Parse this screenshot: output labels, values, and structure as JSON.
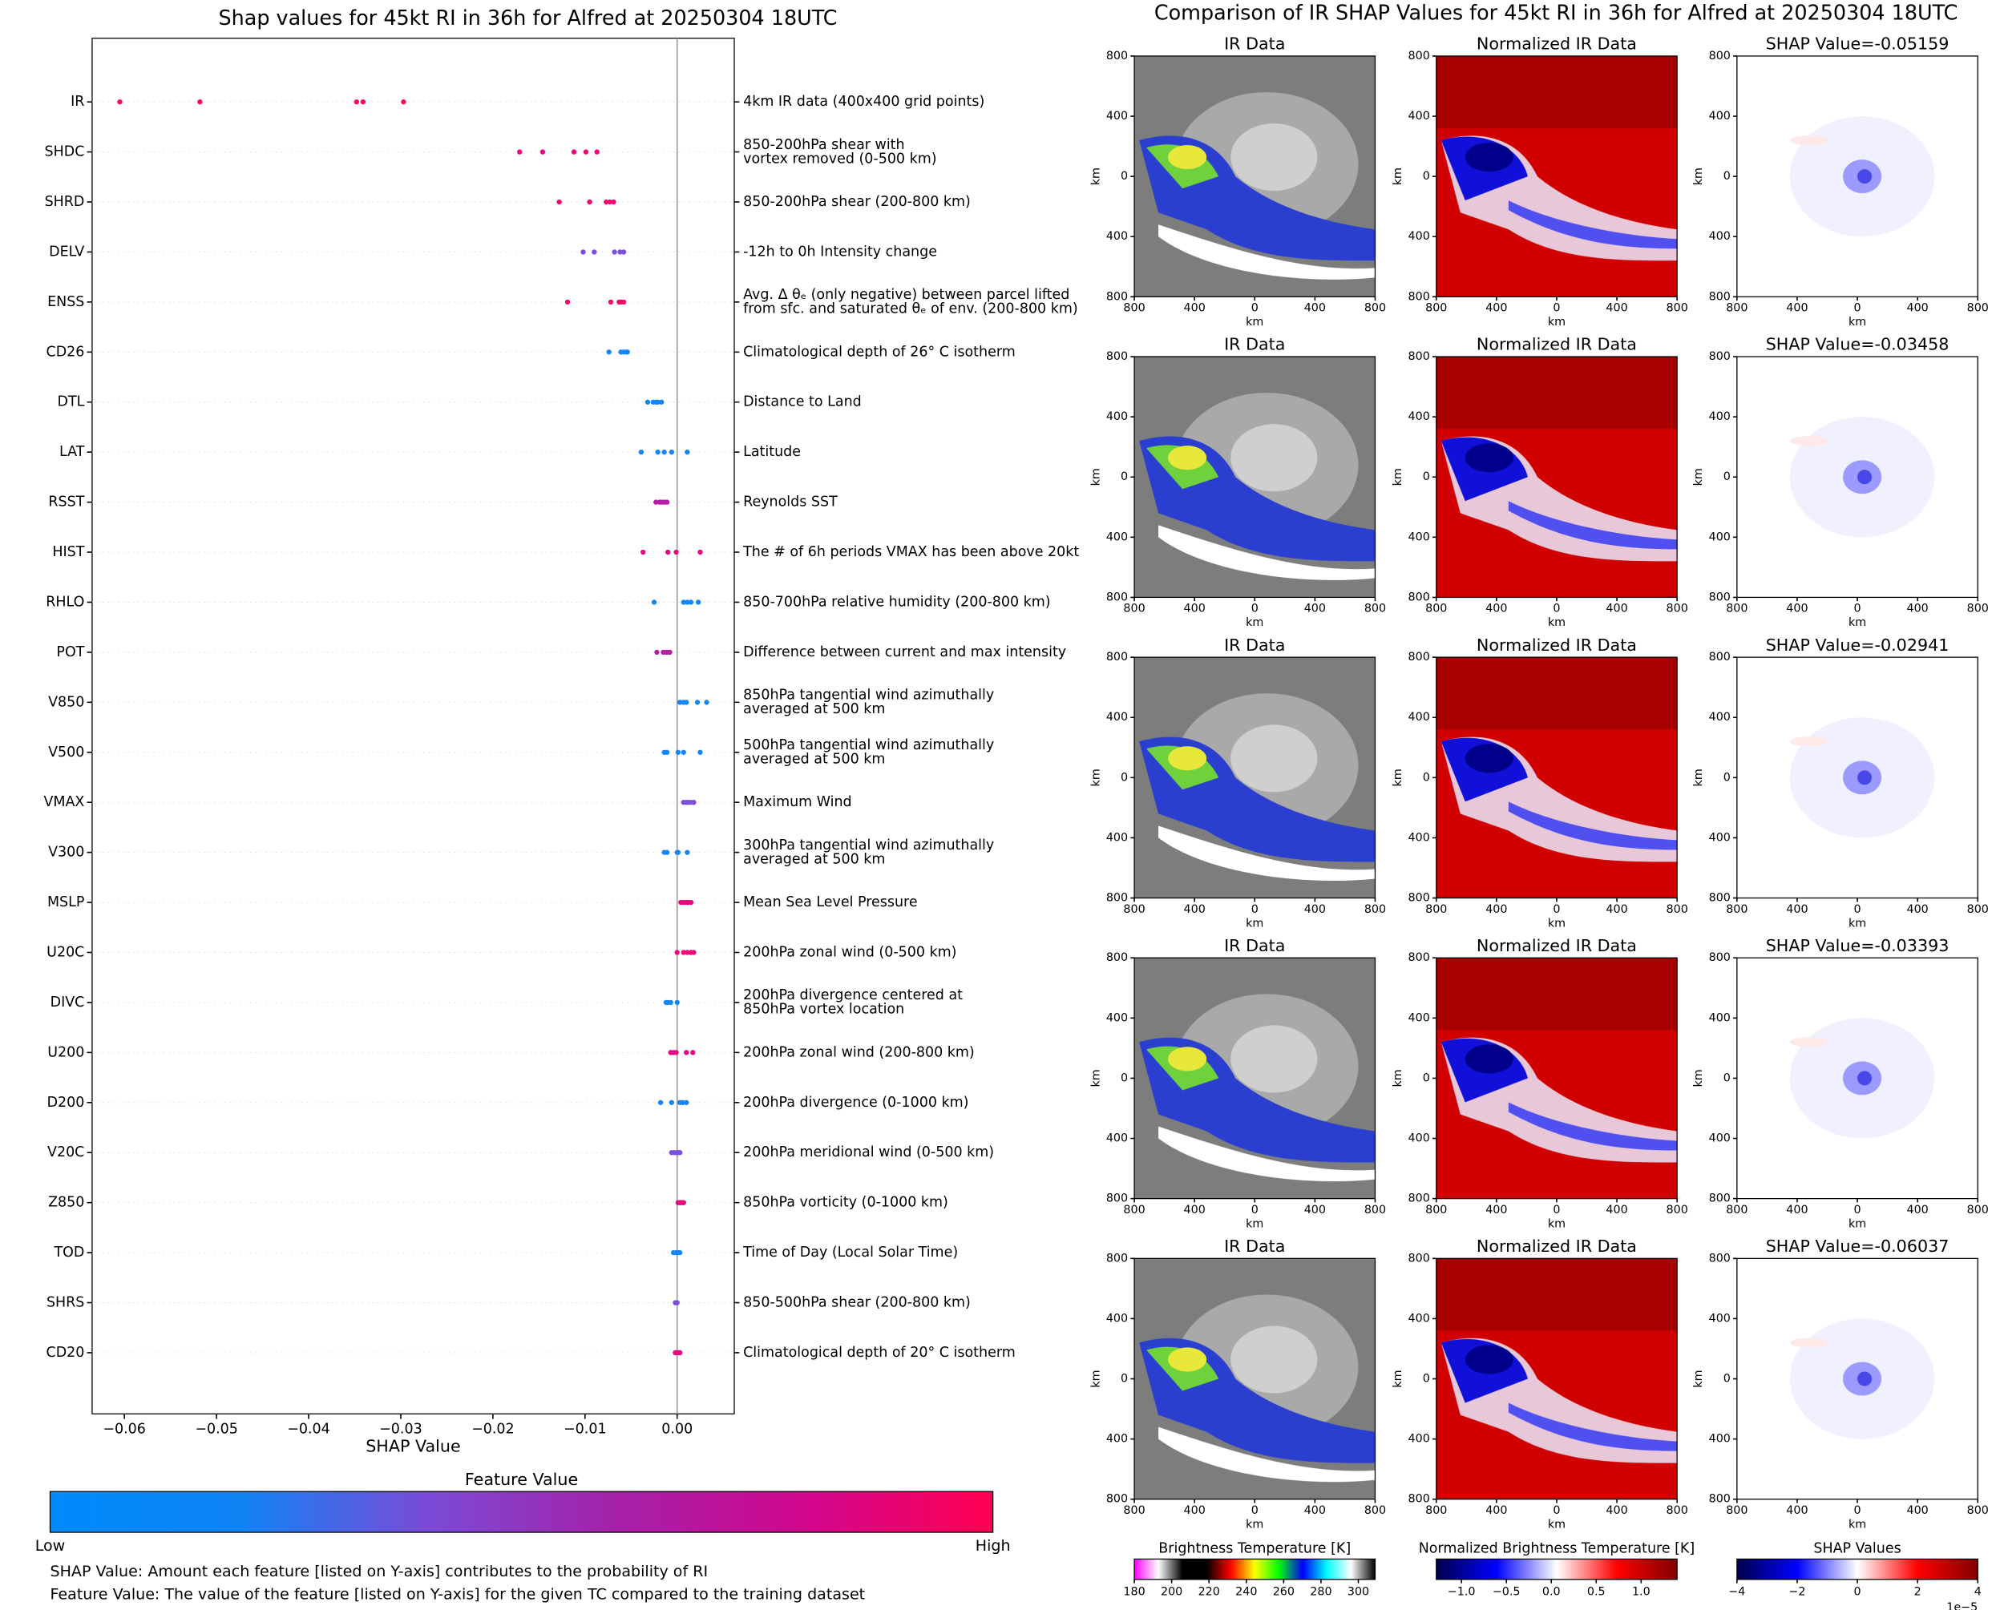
{
  "chart_data": [
    {
      "type": "beeswarm",
      "title": "Shap values for 45kt RI in 36h for Alfred at 20250304 18UTC",
      "x_label": "SHAP Value",
      "xlim": [
        -0.0635,
        0.0062
      ],
      "xticks": [
        {
          "value": -0.06,
          "label": "−0.06"
        },
        {
          "value": -0.05,
          "label": "−0.05"
        },
        {
          "value": -0.04,
          "label": "−0.04"
        },
        {
          "value": -0.03,
          "label": "−0.03"
        },
        {
          "value": -0.02,
          "label": "−0.02"
        },
        {
          "value": -0.01,
          "label": "−0.01"
        },
        {
          "value": 0,
          "label": "0.00"
        }
      ],
      "rows": [
        {
          "name": "IR",
          "lines": [
            "4km IR data (400x400 grid points)"
          ],
          "color": "#ff0a5a",
          "values": [
            -0.0605,
            -0.0518,
            -0.0348,
            -0.0341,
            -0.0297
          ]
        },
        {
          "name": "SHDC",
          "lines": [
            "850-200hPa shear with",
            "vortex removed (0-500 km)"
          ],
          "color": "#f0087a",
          "values": [
            -0.0171,
            -0.0146,
            -0.0112,
            -0.0099,
            -0.0087
          ]
        },
        {
          "name": "SHRD",
          "lines": [
            "850-200hPa shear (200-800 km)"
          ],
          "color": "#f5086e",
          "values": [
            -0.0128,
            -0.0095,
            -0.0077,
            -0.0073,
            -0.0069
          ]
        },
        {
          "name": "DELV",
          "lines": [
            "-12h to 0h Intensity change"
          ],
          "color": "#7b4fdc",
          "values": [
            -0.0102,
            -0.009,
            -0.0068,
            -0.0062,
            -0.0058
          ]
        },
        {
          "name": "ENSS",
          "lines": [
            "Avg. Δ θₑ (only negative) between parcel lifted",
            "from sfc. and saturated θₑ of env. (200-800 km)"
          ],
          "color": "#f20a6a",
          "values": [
            -0.0119,
            -0.0072,
            -0.0063,
            -0.0061,
            -0.0058
          ]
        },
        {
          "name": "CD26",
          "lines": [
            "Climatological depth of 26° C isotherm"
          ],
          "color": "#1686f6",
          "values": [
            -0.0074,
            -0.0061,
            -0.0058,
            -0.0055,
            -0.0054
          ]
        },
        {
          "name": "DTL",
          "lines": [
            "Distance to Land"
          ],
          "color": "#1686f6",
          "values": [
            -0.0032,
            -0.0026,
            -0.0023,
            -0.0021,
            -0.0017
          ]
        },
        {
          "name": "LAT",
          "lines": [
            "Latitude"
          ],
          "color": "#1686f6",
          "values": [
            -0.0039,
            -0.0021,
            -0.0014,
            -0.0006,
            0.0011
          ]
        },
        {
          "name": "RSST",
          "lines": [
            "Reynolds SST"
          ],
          "color": "#b41fa6",
          "values": [
            -0.0023,
            -0.0019,
            -0.0017,
            -0.0014,
            -0.0011
          ]
        },
        {
          "name": "HIST",
          "lines": [
            "The # of 6h periods VMAX has been above 20kt"
          ],
          "color": "#e5087f",
          "values": [
            -0.0037,
            -0.001,
            -0.0001,
            0.0025
          ]
        },
        {
          "name": "RHLO",
          "lines": [
            "850-700hPa relative humidity (200-800 km)"
          ],
          "color": "#1686f6",
          "values": [
            -0.0025,
            0.0007,
            0.0011,
            0.0015,
            0.0023
          ]
        },
        {
          "name": "POT",
          "lines": [
            "Difference between current and max intensity"
          ],
          "color": "#b41fa6",
          "values": [
            -0.0022,
            -0.0015,
            -0.0012,
            -0.0011,
            -0.0008
          ]
        },
        {
          "name": "V850",
          "lines": [
            "850hPa tangential wind azimuthally",
            "averaged at 500 km"
          ],
          "color": "#1686f6",
          "values": [
            0.0003,
            0.0007,
            0.001,
            0.0022,
            0.0032
          ]
        },
        {
          "name": "V500",
          "lines": [
            "500hPa tangential wind azimuthally",
            "averaged at 500 km"
          ],
          "color": "#1686f6",
          "values": [
            -0.0014,
            -0.0011,
            0.0001,
            0.0007,
            0.0025
          ]
        },
        {
          "name": "VMAX",
          "lines": [
            "Maximum Wind"
          ],
          "color": "#7b4fdc",
          "values": [
            0.0007,
            0.001,
            0.0012,
            0.0015,
            0.0018
          ]
        },
        {
          "name": "V300",
          "lines": [
            "300hPa tangential wind azimuthally",
            "averaged at 500 km"
          ],
          "color": "#1686f6",
          "values": [
            -0.0014,
            -0.0011,
            0,
            0.0001,
            0.0011
          ]
        },
        {
          "name": "MSLP",
          "lines": [
            "Mean Sea Level Pressure"
          ],
          "color": "#e5087f",
          "values": [
            0.0004,
            0.0007,
            0.001,
            0.0012,
            0.0015
          ]
        },
        {
          "name": "U20C",
          "lines": [
            "200hPa zonal wind (0-500 km)"
          ],
          "color": "#f0087a",
          "values": [
            0,
            0.0007,
            0.0011,
            0.0015,
            0.0018
          ]
        },
        {
          "name": "DIVC",
          "lines": [
            "200hPa divergence centered at",
            "850hPa vortex location"
          ],
          "color": "#1686f6",
          "values": [
            -0.0012,
            -0.001,
            -0.0007,
            0
          ]
        },
        {
          "name": "U200",
          "lines": [
            "200hPa zonal wind (200-800 km)"
          ],
          "color": "#e5087f",
          "values": [
            -0.0007,
            -0.0004,
            -0.0001,
            0.001,
            0.0017
          ]
        },
        {
          "name": "D200",
          "lines": [
            "200hPa divergence (0-1000 km)"
          ],
          "color": "#1686f6",
          "values": [
            -0.0018,
            -0.0006,
            0.0003,
            0.0006,
            0.001
          ]
        },
        {
          "name": "V20C",
          "lines": [
            "200hPa meridional wind (0-500 km)"
          ],
          "color": "#7b4fdc",
          "values": [
            -0.0006,
            -0.0003,
            0,
            0.0001,
            0.0003
          ]
        },
        {
          "name": "Z850",
          "lines": [
            "850hPa vorticity (0-1000 km)"
          ],
          "color": "#e5087f",
          "values": [
            0.0001,
            0.0003,
            0.0004,
            0.0006,
            0.0007
          ]
        },
        {
          "name": "TOD",
          "lines": [
            "Time of Day (Local Solar Time)"
          ],
          "color": "#1686f6",
          "values": [
            -0.0004,
            -0.0001,
            0,
            0.0001,
            0.0003
          ]
        },
        {
          "name": "SHRS",
          "lines": [
            "850-500hPa shear (200-800 km)"
          ],
          "color": "#7b4fdc",
          "values": [
            -0.0002,
            0
          ]
        },
        {
          "name": "CD20",
          "lines": [
            "Climatological depth of 20° C isotherm"
          ],
          "color": "#e5087f",
          "values": [
            -0.0002,
            0,
            0.0001,
            0.0003
          ]
        }
      ],
      "colorbar": {
        "title": "Feature Value",
        "low": "Low",
        "high": "High",
        "colors": [
          "#008bfb",
          "#0f84f5",
          "#7a4bd6",
          "#a521a8",
          "#d0078e",
          "#ff0052"
        ]
      },
      "notes": [
        "SHAP Value: Amount each feature [listed on Y-axis] contributes to the probability of RI",
        "Feature Value: The value of the feature [listed on Y-axis] for the given TC compared to the training dataset"
      ]
    },
    {
      "type": "image-grid",
      "title": "Comparison of IR SHAP Values for 45kt RI in 36h for Alfred at 20250304 18UTC",
      "x_label": "km",
      "y_label": "km",
      "panel_ticks": [
        {
          "value": -800,
          "label": "800"
        },
        {
          "value": -400,
          "label": "400"
        },
        {
          "value": 0,
          "label": "0"
        },
        {
          "value": 400,
          "label": "400"
        },
        {
          "value": 800,
          "label": "800"
        }
      ],
      "panel_lim": [
        -800,
        800
      ],
      "rows": [
        {
          "ir_title": "IR Data",
          "norm_title": "Normalized IR Data",
          "shap_title": "SHAP Value=-0.05159"
        },
        {
          "ir_title": "IR Data",
          "norm_title": "Normalized IR Data",
          "shap_title": "SHAP Value=-0.03458"
        },
        {
          "ir_title": "IR Data",
          "norm_title": "Normalized IR Data",
          "shap_title": "SHAP Value=-0.02941"
        },
        {
          "ir_title": "IR Data",
          "norm_title": "Normalized IR Data",
          "shap_title": "SHAP Value=-0.03393"
        },
        {
          "ir_title": "IR Data",
          "norm_title": "Normalized IR Data",
          "shap_title": "SHAP Value=-0.06037"
        }
      ],
      "colorbars": [
        {
          "title": "Brightness Temperature [K]",
          "lim": [
            180,
            309
          ],
          "ticks": [
            180,
            200,
            220,
            240,
            260,
            280,
            300
          ],
          "colors": [
            "#ff00ff",
            "#ffffff",
            "#000000",
            "#000000",
            "#ff0000",
            "#ffff00",
            "#00ff00",
            "#0000ff",
            "#00ffff",
            "#ffffff",
            "#000000"
          ]
        },
        {
          "title": "Normalized Brightness Temperature [K]",
          "lim": [
            -1.28,
            1.4
          ],
          "ticks": [
            {
              "value": -1,
              "label": "−1.0"
            },
            {
              "value": -0.5,
              "label": "−0.5"
            },
            {
              "value": 0,
              "label": "0.0"
            },
            {
              "value": 0.5,
              "label": "0.5"
            },
            {
              "value": 1,
              "label": "1.0"
            }
          ],
          "colors": [
            "#00004c",
            "#0000ff",
            "#ffffff",
            "#ff0000",
            "#800000"
          ]
        },
        {
          "title": "SHAP Values",
          "lim": [
            -4,
            4
          ],
          "ticks": [
            {
              "value": -4,
              "label": "−4"
            },
            {
              "value": -2,
              "label": "−2"
            },
            {
              "value": 0,
              "label": "0"
            },
            {
              "value": 2,
              "label": "2"
            },
            {
              "value": 4,
              "label": "4"
            }
          ],
          "offset": "1e−5",
          "colors": [
            "#00004c",
            "#0000ff",
            "#ffffff",
            "#ff0000",
            "#800000"
          ]
        }
      ]
    }
  ]
}
